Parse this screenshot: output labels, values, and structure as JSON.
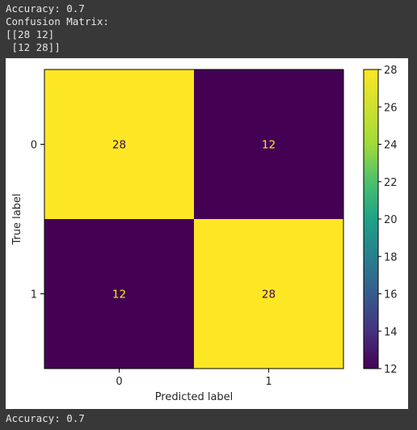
{
  "console": {
    "lines_before": [
      "Accuracy: 0.7",
      "Confusion Matrix:",
      "[[28 12]",
      " [12 28]]"
    ],
    "line_after": "Accuracy: 0.7"
  },
  "colors": {
    "low": "#440154",
    "high": "#fde725",
    "text_on_low": "#fde725",
    "text_on_high": "#440154"
  },
  "chart_data": {
    "type": "heatmap",
    "title": "",
    "xlabel": "Predicted label",
    "ylabel": "True label",
    "x_categories": [
      "0",
      "1"
    ],
    "y_categories": [
      "0",
      "1"
    ],
    "values": [
      [
        28,
        12
      ],
      [
        12,
        28
      ]
    ],
    "colormap": "viridis",
    "colorbar": {
      "range": [
        12,
        28
      ],
      "ticks": [
        12,
        14,
        16,
        18,
        20,
        22,
        24,
        26,
        28
      ]
    },
    "grid": false
  }
}
